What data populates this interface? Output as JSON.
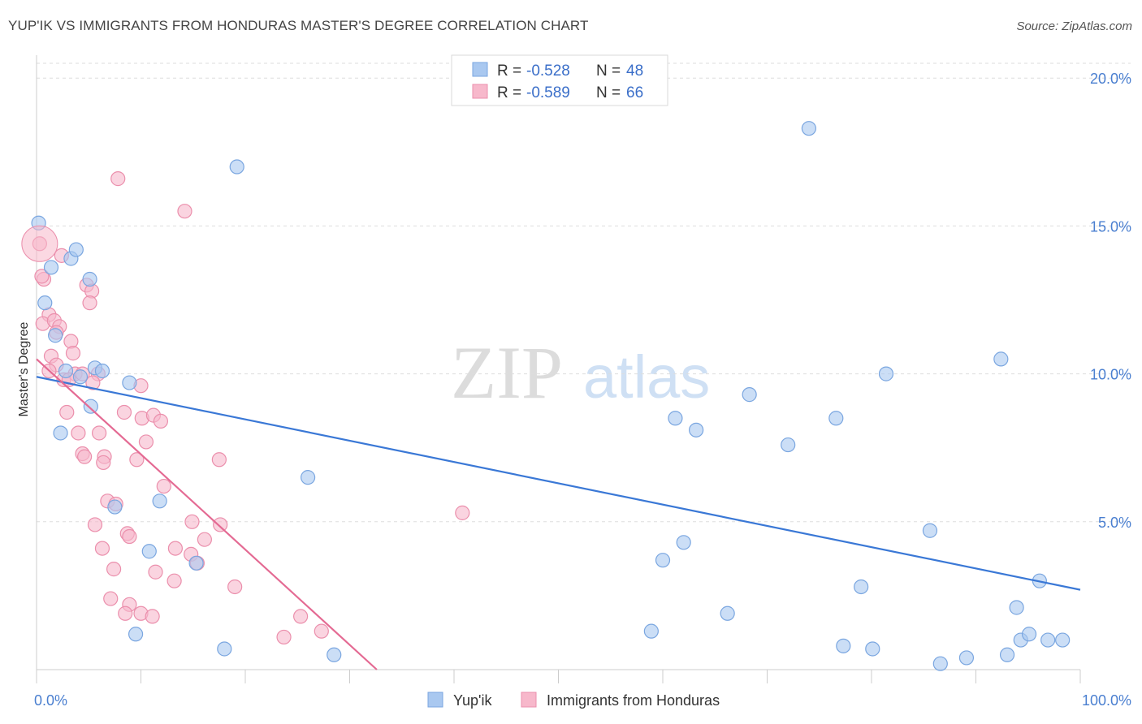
{
  "title": "YUP'IK VS IMMIGRANTS FROM HONDURAS MASTER'S DEGREE CORRELATION CHART",
  "source": "Source: ZipAtlas.com",
  "watermark": {
    "zip": "ZIP",
    "atlas": "atlas"
  },
  "colors": {
    "blue_fill": "#a9c8f0",
    "blue_stroke": "#7aa6e0",
    "blue_line": "#3a78d6",
    "pink_fill": "#f7b8cb",
    "pink_stroke": "#eb8fac",
    "pink_line": "#e46a93",
    "grid": "#dddddd",
    "tick_text": "#4a7fd0"
  },
  "legend": {
    "rows": [
      {
        "r_label": "R = ",
        "r_value": "-0.528",
        "n_label": "N = ",
        "n_value": "48"
      },
      {
        "r_label": "R = ",
        "r_value": "-0.589",
        "n_label": "N = ",
        "n_value": "66"
      }
    ]
  },
  "chart_data": {
    "type": "scatter",
    "title": "YUP'IK VS IMMIGRANTS FROM HONDURAS MASTER'S DEGREE CORRELATION CHART",
    "xlabel": "",
    "ylabel": "Master's Degree",
    "xlim": [
      0,
      100
    ],
    "ylim": [
      0,
      20.5
    ],
    "x_tick_labels": [
      "0.0%",
      "100.0%"
    ],
    "y_ticks": [
      5,
      10,
      15,
      20
    ],
    "y_tick_labels": [
      "5.0%",
      "10.0%",
      "15.0%",
      "20.0%"
    ],
    "grid": true,
    "legend_position": "top-center",
    "series": [
      {
        "name": "Yup'ik",
        "color": "#a9c8f0",
        "R": -0.528,
        "N": 48,
        "trend": {
          "x": [
            0,
            100
          ],
          "y": [
            9.9,
            2.7
          ]
        },
        "points": [
          {
            "x": 0.2,
            "y": 15.1
          },
          {
            "x": 1.4,
            "y": 13.6
          },
          {
            "x": 3.3,
            "y": 13.9
          },
          {
            "x": 3.8,
            "y": 14.2
          },
          {
            "x": 0.8,
            "y": 12.4
          },
          {
            "x": 5.1,
            "y": 13.2
          },
          {
            "x": 1.8,
            "y": 11.3
          },
          {
            "x": 2.8,
            "y": 10.1
          },
          {
            "x": 4.2,
            "y": 9.9
          },
          {
            "x": 5.6,
            "y": 10.2
          },
          {
            "x": 6.3,
            "y": 10.1
          },
          {
            "x": 8.9,
            "y": 9.7
          },
          {
            "x": 5.2,
            "y": 8.9
          },
          {
            "x": 2.3,
            "y": 8.0
          },
          {
            "x": 19.2,
            "y": 17.0
          },
          {
            "x": 74.0,
            "y": 18.3
          },
          {
            "x": 26.0,
            "y": 6.5
          },
          {
            "x": 11.8,
            "y": 5.7
          },
          {
            "x": 7.5,
            "y": 5.5
          },
          {
            "x": 10.8,
            "y": 4.0
          },
          {
            "x": 15.3,
            "y": 3.6
          },
          {
            "x": 9.5,
            "y": 1.2
          },
          {
            "x": 18.0,
            "y": 0.7
          },
          {
            "x": 28.5,
            "y": 0.5
          },
          {
            "x": 61.2,
            "y": 8.5
          },
          {
            "x": 63.2,
            "y": 8.1
          },
          {
            "x": 68.3,
            "y": 9.3
          },
          {
            "x": 72.0,
            "y": 7.6
          },
          {
            "x": 76.6,
            "y": 8.5
          },
          {
            "x": 81.4,
            "y": 10.0
          },
          {
            "x": 92.4,
            "y": 10.5
          },
          {
            "x": 62.0,
            "y": 4.3
          },
          {
            "x": 60.0,
            "y": 3.7
          },
          {
            "x": 85.6,
            "y": 4.7
          },
          {
            "x": 79.0,
            "y": 2.8
          },
          {
            "x": 96.1,
            "y": 3.0
          },
          {
            "x": 66.2,
            "y": 1.9
          },
          {
            "x": 58.9,
            "y": 1.3
          },
          {
            "x": 93.9,
            "y": 2.1
          },
          {
            "x": 77.3,
            "y": 0.8
          },
          {
            "x": 80.1,
            "y": 0.7
          },
          {
            "x": 94.3,
            "y": 1.0
          },
          {
            "x": 95.1,
            "y": 1.2
          },
          {
            "x": 96.9,
            "y": 1.0
          },
          {
            "x": 98.3,
            "y": 1.0
          },
          {
            "x": 89.1,
            "y": 0.4
          },
          {
            "x": 86.6,
            "y": 0.2
          },
          {
            "x": 93.0,
            "y": 0.5
          }
        ]
      },
      {
        "name": "Immigrants from Honduras",
        "color": "#f7b8cb",
        "R": -0.589,
        "N": 66,
        "trend": {
          "x": [
            0,
            32.6
          ],
          "y": [
            10.5,
            0
          ]
        },
        "points": [
          {
            "x": 0.3,
            "y": 14.4
          },
          {
            "x": 0.7,
            "y": 13.2
          },
          {
            "x": 0.5,
            "y": 13.3
          },
          {
            "x": 7.8,
            "y": 16.6
          },
          {
            "x": 14.2,
            "y": 15.5
          },
          {
            "x": 2.4,
            "y": 14.0
          },
          {
            "x": 4.8,
            "y": 13.0
          },
          {
            "x": 5.3,
            "y": 12.8
          },
          {
            "x": 5.1,
            "y": 12.4
          },
          {
            "x": 1.2,
            "y": 12.0
          },
          {
            "x": 0.6,
            "y": 11.7
          },
          {
            "x": 1.7,
            "y": 11.8
          },
          {
            "x": 2.2,
            "y": 11.6
          },
          {
            "x": 1.9,
            "y": 11.4
          },
          {
            "x": 3.3,
            "y": 11.1
          },
          {
            "x": 3.5,
            "y": 10.7
          },
          {
            "x": 1.4,
            "y": 10.6
          },
          {
            "x": 1.9,
            "y": 10.3
          },
          {
            "x": 1.2,
            "y": 10.1
          },
          {
            "x": 3.7,
            "y": 10.0
          },
          {
            "x": 2.6,
            "y": 9.8
          },
          {
            "x": 3.1,
            "y": 9.8
          },
          {
            "x": 4.4,
            "y": 10.0
          },
          {
            "x": 5.9,
            "y": 10.0
          },
          {
            "x": 5.4,
            "y": 9.7
          },
          {
            "x": 10.0,
            "y": 9.6
          },
          {
            "x": 2.9,
            "y": 8.7
          },
          {
            "x": 8.4,
            "y": 8.7
          },
          {
            "x": 10.1,
            "y": 8.5
          },
          {
            "x": 11.2,
            "y": 8.6
          },
          {
            "x": 11.9,
            "y": 8.4
          },
          {
            "x": 6.0,
            "y": 8.0
          },
          {
            "x": 4.0,
            "y": 8.0
          },
          {
            "x": 10.5,
            "y": 7.7
          },
          {
            "x": 4.4,
            "y": 7.3
          },
          {
            "x": 4.6,
            "y": 7.2
          },
          {
            "x": 6.5,
            "y": 7.2
          },
          {
            "x": 9.6,
            "y": 7.1
          },
          {
            "x": 17.5,
            "y": 7.1
          },
          {
            "x": 6.4,
            "y": 7.0
          },
          {
            "x": 12.2,
            "y": 6.2
          },
          {
            "x": 6.8,
            "y": 5.7
          },
          {
            "x": 7.6,
            "y": 5.6
          },
          {
            "x": 14.9,
            "y": 5.0
          },
          {
            "x": 17.6,
            "y": 4.9
          },
          {
            "x": 5.6,
            "y": 4.9
          },
          {
            "x": 8.7,
            "y": 4.6
          },
          {
            "x": 8.9,
            "y": 4.5
          },
          {
            "x": 16.1,
            "y": 4.4
          },
          {
            "x": 6.3,
            "y": 4.1
          },
          {
            "x": 13.3,
            "y": 4.1
          },
          {
            "x": 14.8,
            "y": 3.9
          },
          {
            "x": 15.4,
            "y": 3.6
          },
          {
            "x": 7.4,
            "y": 3.4
          },
          {
            "x": 11.4,
            "y": 3.3
          },
          {
            "x": 13.2,
            "y": 3.0
          },
          {
            "x": 19.0,
            "y": 2.8
          },
          {
            "x": 7.1,
            "y": 2.4
          },
          {
            "x": 8.9,
            "y": 2.2
          },
          {
            "x": 8.5,
            "y": 1.9
          },
          {
            "x": 10.0,
            "y": 1.9
          },
          {
            "x": 11.1,
            "y": 1.8
          },
          {
            "x": 25.3,
            "y": 1.8
          },
          {
            "x": 27.3,
            "y": 1.3
          },
          {
            "x": 23.7,
            "y": 1.1
          },
          {
            "x": 40.8,
            "y": 5.3
          }
        ]
      }
    ]
  }
}
